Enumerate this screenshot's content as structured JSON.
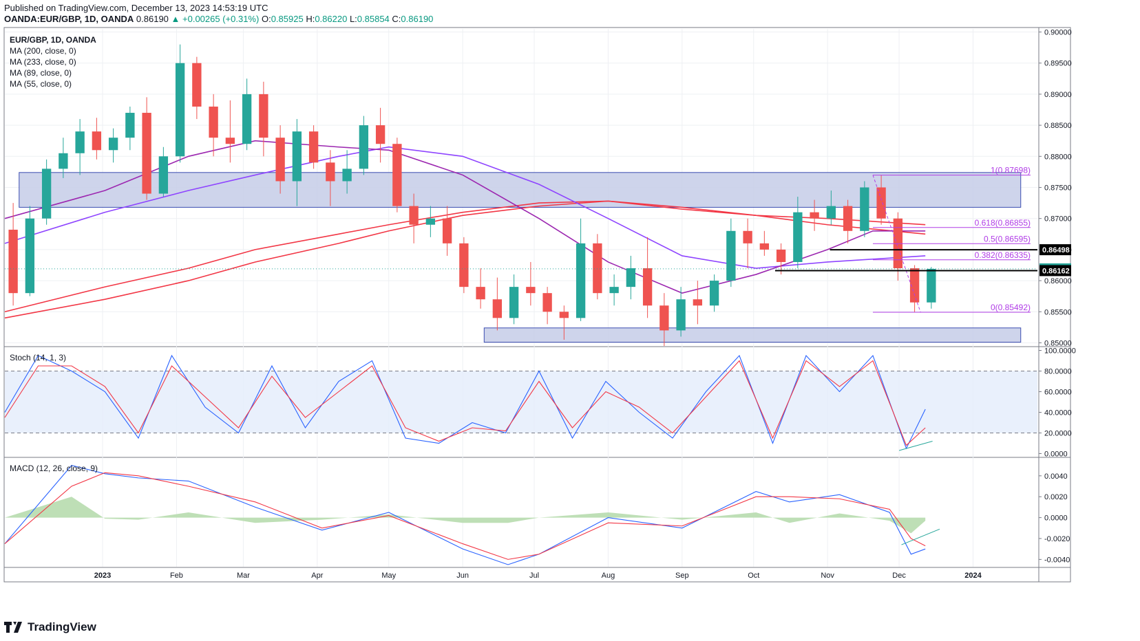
{
  "header": {
    "published": "Published on TradingView.com, December 13, 2023 14:53:19 UTC",
    "symbol_line": "OANDA:EUR/GBP, 1D, OANDA",
    "open_label": "O:",
    "open": "0.85925",
    "high_label": "H:",
    "high": "0.86220",
    "low_label": "L:",
    "low": "0.85854",
    "close_label": "C:",
    "close": "0.86190",
    "last": "0.86190",
    "change": "▲ +0.00265 (+0.31%)"
  },
  "legend": {
    "title": "EUR/GBP, 1D, OANDA",
    "ma200": "MA (200, close, 0)",
    "ma233": "MA (233, close, 0)",
    "ma89": "MA (89, close, 0)",
    "ma55": "MA (55, close, 0)"
  },
  "footer": {
    "brand": "TradingView"
  },
  "colors": {
    "up": "#26a69a",
    "down": "#ef5350",
    "ma_red": "#f23645",
    "ma_purple": "#9c27b0",
    "ma_violet": "#8e44ff",
    "box_fill": "#c5cde8",
    "box_stroke": "#3a4cb0",
    "fib": "#b03ce6",
    "stoch_k": "#2962ff",
    "stoch_d": "#f23645",
    "macd": "#2962ff",
    "signal": "#f23645",
    "hist": "#b7dcae",
    "trend": "#26a69a"
  },
  "chart_data": [
    {
      "type": "candlestick",
      "title": "EUR/GBP, 1D, OANDA",
      "x_tick_labels": [
        "2023",
        "Feb",
        "Mar",
        "Apr",
        "May",
        "Jun",
        "Jul",
        "Aug",
        "Sep",
        "Oct",
        "Nov",
        "Dec",
        "2024"
      ],
      "ylim": [
        0.8495,
        0.9005
      ],
      "y_tick_labels": [
        "0.90000",
        "0.89500",
        "0.89000",
        "0.88500",
        "0.88000",
        "0.87500",
        "0.87000",
        "0.86500",
        "0.86000",
        "0.85500",
        "0.85000"
      ],
      "price_labels": [
        {
          "text": "0.86498",
          "value": 0.86498,
          "style": "black"
        },
        {
          "text": "0.86190",
          "value": 0.8619,
          "style": "green"
        },
        {
          "text": "0.86162",
          "value": 0.86162,
          "style": "black"
        }
      ],
      "zones": [
        {
          "from": 0.8718,
          "to": 0.8774,
          "start": "2022-11-27",
          "end": "2024-01-21"
        },
        {
          "from": 0.8501,
          "to": 0.8524,
          "start": "2023-06-10",
          "end": "2024-01-21"
        }
      ],
      "fibonacci": [
        {
          "label": "1(0.87698)",
          "value": 0.87698
        },
        {
          "label": "0.618(0.86855)",
          "value": 0.86855
        },
        {
          "label": "0.5(0.86595)",
          "value": 0.86595
        },
        {
          "label": "0.382(0.86335)",
          "value": 0.86335
        },
        {
          "label": "0(0.85492)",
          "value": 0.85492
        }
      ],
      "horizontal_lines": [
        {
          "value": 0.86498,
          "start": "2023-11-02",
          "end": "2024-01-21"
        },
        {
          "value": 0.86162,
          "start": "2023-10-10",
          "end": "2024-01-21"
        }
      ],
      "candles_weekly_ohlc": [
        [
          "2022-11-21",
          0.8682,
          0.8725,
          0.856,
          0.858
        ],
        [
          "2022-11-28",
          0.858,
          0.872,
          0.8575,
          0.87
        ],
        [
          "2022-12-05",
          0.87,
          0.8795,
          0.869,
          0.878
        ],
        [
          "2022-12-12",
          0.878,
          0.883,
          0.8765,
          0.8805
        ],
        [
          "2022-12-19",
          0.8805,
          0.886,
          0.877,
          0.884
        ],
        [
          "2022-12-26",
          0.884,
          0.8862,
          0.8795,
          0.881
        ],
        [
          "2023-01-02",
          0.881,
          0.8845,
          0.879,
          0.883
        ],
        [
          "2023-01-09",
          0.883,
          0.888,
          0.881,
          0.887
        ],
        [
          "2023-01-16",
          0.887,
          0.8895,
          0.873,
          0.874
        ],
        [
          "2023-01-23",
          0.874,
          0.8815,
          0.8735,
          0.88
        ],
        [
          "2023-01-30",
          0.88,
          0.898,
          0.879,
          0.895
        ],
        [
          "2023-02-06",
          0.895,
          0.896,
          0.886,
          0.888
        ],
        [
          "2023-02-13",
          0.888,
          0.89,
          0.88,
          0.883
        ],
        [
          "2023-02-20",
          0.883,
          0.889,
          0.879,
          0.882
        ],
        [
          "2023-02-27",
          0.882,
          0.8925,
          0.881,
          0.89
        ],
        [
          "2023-03-06",
          0.89,
          0.892,
          0.88,
          0.883
        ],
        [
          "2023-03-13",
          0.883,
          0.885,
          0.874,
          0.876
        ],
        [
          "2023-03-20",
          0.876,
          0.886,
          0.872,
          0.884
        ],
        [
          "2023-03-27",
          0.884,
          0.885,
          0.878,
          0.879
        ],
        [
          "2023-04-03",
          0.879,
          0.881,
          0.872,
          0.876
        ],
        [
          "2023-04-10",
          0.876,
          0.881,
          0.874,
          0.878
        ],
        [
          "2023-04-17",
          0.878,
          0.8865,
          0.877,
          0.885
        ],
        [
          "2023-04-24",
          0.885,
          0.8878,
          0.879,
          0.882
        ],
        [
          "2023-05-01",
          0.882,
          0.883,
          0.871,
          0.872
        ],
        [
          "2023-05-08",
          0.872,
          0.874,
          0.866,
          0.869
        ],
        [
          "2023-05-15",
          0.869,
          0.872,
          0.867,
          0.87
        ],
        [
          "2023-05-22",
          0.87,
          0.872,
          0.864,
          0.866
        ],
        [
          "2023-05-29",
          0.866,
          0.867,
          0.858,
          0.859
        ],
        [
          "2023-06-05",
          0.859,
          0.862,
          0.8555,
          0.857
        ],
        [
          "2023-06-12",
          0.857,
          0.8605,
          0.852,
          0.854
        ],
        [
          "2023-06-19",
          0.854,
          0.861,
          0.853,
          0.859
        ],
        [
          "2023-06-26",
          0.859,
          0.863,
          0.856,
          0.858
        ],
        [
          "2023-07-03",
          0.858,
          0.859,
          0.853,
          0.855
        ],
        [
          "2023-07-10",
          0.855,
          0.856,
          0.8505,
          0.854
        ],
        [
          "2023-07-17",
          0.854,
          0.87,
          0.8535,
          0.866
        ],
        [
          "2023-07-24",
          0.866,
          0.8675,
          0.857,
          0.858
        ],
        [
          "2023-07-31",
          0.858,
          0.861,
          0.856,
          0.859
        ],
        [
          "2023-08-07",
          0.859,
          0.864,
          0.857,
          0.862
        ],
        [
          "2023-08-14",
          0.862,
          0.867,
          0.854,
          0.856
        ],
        [
          "2023-08-21",
          0.856,
          0.858,
          0.8495,
          0.852
        ],
        [
          "2023-08-28",
          0.852,
          0.859,
          0.851,
          0.857
        ],
        [
          "2023-09-04",
          0.857,
          0.86,
          0.853,
          0.856
        ],
        [
          "2023-09-11",
          0.856,
          0.861,
          0.855,
          0.86
        ],
        [
          "2023-09-18",
          0.86,
          0.87,
          0.859,
          0.868
        ],
        [
          "2023-09-25",
          0.868,
          0.87,
          0.862,
          0.866
        ],
        [
          "2023-10-02",
          0.866,
          0.868,
          0.864,
          0.865
        ],
        [
          "2023-10-09",
          0.865,
          0.866,
          0.861,
          0.863
        ],
        [
          "2023-10-16",
          0.863,
          0.8735,
          0.862,
          0.871
        ],
        [
          "2023-10-23",
          0.871,
          0.873,
          0.868,
          0.87
        ],
        [
          "2023-10-30",
          0.87,
          0.8745,
          0.869,
          0.872
        ],
        [
          "2023-11-06",
          0.872,
          0.873,
          0.866,
          0.868
        ],
        [
          "2023-11-13",
          0.868,
          0.876,
          0.867,
          0.875
        ],
        [
          "2023-11-20",
          0.875,
          0.877,
          0.869,
          0.87
        ],
        [
          "2023-11-27",
          0.87,
          0.871,
          0.86,
          0.862
        ],
        [
          "2023-12-04",
          0.862,
          0.8625,
          0.8549,
          0.8565
        ],
        [
          "2023-12-11",
          0.8565,
          0.8622,
          0.8555,
          0.8619
        ]
      ],
      "moving_averages": {
        "ma55": [
          [
            "2022-11-21",
            0.87
          ],
          [
            "2023-01-02",
            0.8745
          ],
          [
            "2023-02-06",
            0.88
          ],
          [
            "2023-03-06",
            0.8825
          ],
          [
            "2023-04-10",
            0.8815
          ],
          [
            "2023-05-01",
            0.881
          ],
          [
            "2023-06-01",
            0.877
          ],
          [
            "2023-07-03",
            0.87
          ],
          [
            "2023-08-01",
            0.863
          ],
          [
            "2023-09-01",
            0.858
          ],
          [
            "2023-10-02",
            0.861
          ],
          [
            "2023-11-01",
            0.865
          ],
          [
            "2023-11-20",
            0.868
          ],
          [
            "2023-12-12",
            0.868
          ]
        ],
        "ma89": [
          [
            "2022-11-21",
            0.866
          ],
          [
            "2023-01-02",
            0.871
          ],
          [
            "2023-02-06",
            0.8745
          ],
          [
            "2023-03-06",
            0.877
          ],
          [
            "2023-04-10",
            0.88
          ],
          [
            "2023-05-01",
            0.8815
          ],
          [
            "2023-06-01",
            0.88
          ],
          [
            "2023-07-03",
            0.8755
          ],
          [
            "2023-08-01",
            0.87
          ],
          [
            "2023-09-01",
            0.864
          ],
          [
            "2023-10-02",
            0.862
          ],
          [
            "2023-11-01",
            0.863
          ],
          [
            "2023-12-12",
            0.864
          ]
        ],
        "ma200": [
          [
            "2022-11-21",
            0.855
          ],
          [
            "2023-01-02",
            0.859
          ],
          [
            "2023-02-06",
            0.862
          ],
          [
            "2023-03-06",
            0.865
          ],
          [
            "2023-04-10",
            0.8675
          ],
          [
            "2023-05-01",
            0.869
          ],
          [
            "2023-06-01",
            0.871
          ],
          [
            "2023-07-03",
            0.8725
          ],
          [
            "2023-08-01",
            0.8728
          ],
          [
            "2023-09-01",
            0.8715
          ],
          [
            "2023-10-02",
            0.8705
          ],
          [
            "2023-11-01",
            0.87
          ],
          [
            "2023-12-12",
            0.869
          ]
        ],
        "ma233": [
          [
            "2022-11-21",
            0.854
          ],
          [
            "2023-01-02",
            0.857
          ],
          [
            "2023-02-06",
            0.86
          ],
          [
            "2023-03-06",
            0.863
          ],
          [
            "2023-04-10",
            0.866
          ],
          [
            "2023-05-01",
            0.868
          ],
          [
            "2023-06-01",
            0.8705
          ],
          [
            "2023-07-03",
            0.872
          ],
          [
            "2023-08-01",
            0.8728
          ],
          [
            "2023-09-01",
            0.8718
          ],
          [
            "2023-10-02",
            0.8705
          ],
          [
            "2023-11-01",
            0.869
          ],
          [
            "2023-12-12",
            0.8675
          ]
        ]
      }
    },
    {
      "type": "line",
      "title": "Stoch (14, 1, 3)",
      "ylim": [
        -3,
        103
      ],
      "y_tick_labels": [
        "100.0000",
        "80.0000",
        "60.0000",
        "40.0000",
        "20.0000",
        "0.0000"
      ],
      "band": [
        20,
        80
      ],
      "series": [
        {
          "name": "%K",
          "x": [
            "2022-11-21",
            "2022-12-05",
            "2022-12-19",
            "2023-01-02",
            "2023-01-16",
            "2023-01-30",
            "2023-02-13",
            "2023-02-27",
            "2023-03-13",
            "2023-03-27",
            "2023-04-10",
            "2023-04-24",
            "2023-05-08",
            "2023-05-22",
            "2023-06-05",
            "2023-06-19",
            "2023-07-03",
            "2023-07-17",
            "2023-07-31",
            "2023-08-14",
            "2023-08-28",
            "2023-09-11",
            "2023-09-25",
            "2023-10-09",
            "2023-10-23",
            "2023-11-06",
            "2023-11-20",
            "2023-12-04",
            "2023-12-12"
          ],
          "values": [
            40,
            95,
            80,
            60,
            15,
            95,
            45,
            20,
            85,
            25,
            70,
            90,
            15,
            10,
            30,
            20,
            80,
            15,
            70,
            40,
            15,
            60,
            95,
            10,
            95,
            60,
            95,
            5,
            43
          ]
        },
        {
          "name": "%D",
          "x": [
            "2022-11-21",
            "2022-12-05",
            "2022-12-19",
            "2023-01-02",
            "2023-01-16",
            "2023-01-30",
            "2023-02-13",
            "2023-02-27",
            "2023-03-13",
            "2023-03-27",
            "2023-04-10",
            "2023-04-24",
            "2023-05-08",
            "2023-05-22",
            "2023-06-05",
            "2023-06-19",
            "2023-07-03",
            "2023-07-17",
            "2023-07-31",
            "2023-08-14",
            "2023-08-28",
            "2023-09-11",
            "2023-09-25",
            "2023-10-09",
            "2023-10-23",
            "2023-11-06",
            "2023-11-20",
            "2023-12-04",
            "2023-12-12"
          ],
          "values": [
            35,
            85,
            85,
            65,
            20,
            85,
            55,
            25,
            75,
            35,
            60,
            85,
            25,
            12,
            25,
            22,
            70,
            25,
            60,
            45,
            20,
            55,
            90,
            15,
            90,
            65,
            90,
            8,
            25
          ]
        }
      ]
    },
    {
      "type": "line",
      "title": "MACD (12, 26, close, 9)",
      "ylim": [
        -0.0047,
        0.0057
      ],
      "y_tick_labels": [
        "0.0040",
        "0.0020",
        "0.0000",
        "-0.0020",
        "-0.0040"
      ],
      "series": [
        {
          "name": "MACD",
          "x": [
            "2022-11-21",
            "2022-12-19",
            "2023-01-02",
            "2023-01-16",
            "2023-02-06",
            "2023-03-06",
            "2023-04-03",
            "2023-05-01",
            "2023-06-01",
            "2023-06-20",
            "2023-07-03",
            "2023-08-01",
            "2023-09-01",
            "2023-10-02",
            "2023-10-16",
            "2023-11-06",
            "2023-11-27",
            "2023-12-06",
            "2023-12-12"
          ],
          "values": [
            -0.0025,
            0.005,
            0.0042,
            0.0038,
            0.0035,
            0.001,
            -0.0012,
            0.0005,
            -0.003,
            -0.0045,
            -0.0035,
            0.0,
            -0.001,
            0.0025,
            0.0015,
            0.0022,
            0.0005,
            -0.0035,
            -0.003
          ]
        },
        {
          "name": "Signal",
          "x": [
            "2022-11-21",
            "2022-12-19",
            "2023-01-02",
            "2023-01-16",
            "2023-02-06",
            "2023-03-06",
            "2023-04-03",
            "2023-05-01",
            "2023-06-01",
            "2023-06-20",
            "2023-07-03",
            "2023-08-01",
            "2023-09-01",
            "2023-10-02",
            "2023-10-16",
            "2023-11-06",
            "2023-11-27",
            "2023-12-06",
            "2023-12-12"
          ],
          "values": [
            -0.0025,
            0.003,
            0.0043,
            0.004,
            0.003,
            0.0015,
            -0.001,
            0.0002,
            -0.0025,
            -0.004,
            -0.0035,
            -0.0005,
            -0.0008,
            0.002,
            0.002,
            0.0018,
            0.0008,
            -0.002,
            -0.0027
          ]
        }
      ]
    }
  ]
}
